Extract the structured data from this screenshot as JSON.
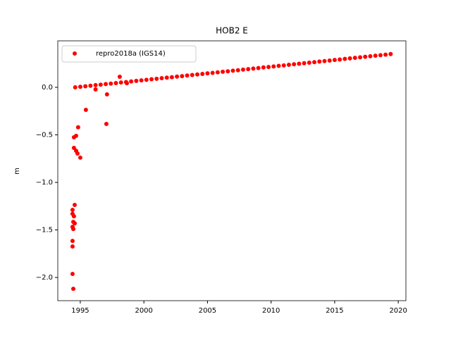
{
  "chart_data": {
    "type": "scatter",
    "title": "HOB2 E",
    "y_label": "m",
    "xlim": [
      1993.23,
      2020.6
    ],
    "ylim": [
      -2.244,
      0.489
    ],
    "xticks": [
      1995,
      2000,
      2005,
      2010,
      2015,
      2020
    ],
    "yticks": [
      {
        "value": 0,
        "label": "0.0"
      },
      {
        "value": -0.5,
        "label": "−0.5"
      },
      {
        "value": -1,
        "label": "−1.0"
      },
      {
        "value": -1.5,
        "label": "−1.5"
      },
      {
        "value": -2,
        "label": "−2.0"
      }
    ],
    "legend": "upper left",
    "series": [
      {
        "name": "repro2018a (IGS14)",
        "color": "#ff0000",
        "x": [
          1994.6,
          1995,
          1995.4,
          1995.8,
          1996.2,
          1996.6,
          1997,
          1997.4,
          1997.8,
          1998.2,
          1998.6,
          1999,
          1999.4,
          1999.8,
          2000.2,
          2000.6,
          2001,
          2001.4,
          2001.8,
          2002.2,
          2002.6,
          2003,
          2003.4,
          2003.8,
          2004.2,
          2004.6,
          2005,
          2005.4,
          2005.8,
          2006.2,
          2006.6,
          2007,
          2007.4,
          2007.8,
          2008.2,
          2008.6,
          2009,
          2009.4,
          2009.8,
          2010.2,
          2010.6,
          2011,
          2011.4,
          2011.8,
          2012.2,
          2012.6,
          2013,
          2013.4,
          2013.8,
          2014.2,
          2014.6,
          2015,
          2015.4,
          2015.8,
          2016.2,
          2016.6,
          2017,
          2017.4,
          2017.8,
          2018.2,
          2018.6,
          2019,
          2019.4,
          1995.44,
          1994.83,
          1994.5,
          1994.67,
          1994.5,
          1994.67,
          1994.78,
          1995.0,
          1994.56,
          1994.39,
          1994.39,
          1994.5,
          1994.45,
          1994.56,
          1994.39,
          1994.45,
          1994.39,
          1994.39,
          1994.39,
          1994.45,
          1997.1,
          1997.05,
          1996.2,
          1998.1,
          1998.66
        ],
        "values": [
          0.0,
          0.006,
          0.011,
          0.017,
          0.023,
          0.028,
          0.034,
          0.039,
          0.045,
          0.051,
          0.056,
          0.062,
          0.068,
          0.073,
          0.079,
          0.085,
          0.09,
          0.096,
          0.102,
          0.107,
          0.113,
          0.118,
          0.124,
          0.13,
          0.135,
          0.141,
          0.147,
          0.152,
          0.158,
          0.164,
          0.169,
          0.175,
          0.18,
          0.186,
          0.192,
          0.197,
          0.203,
          0.209,
          0.214,
          0.22,
          0.226,
          0.231,
          0.237,
          0.243,
          0.248,
          0.254,
          0.259,
          0.265,
          0.271,
          0.276,
          0.282,
          0.288,
          0.293,
          0.299,
          0.305,
          0.31,
          0.316,
          0.321,
          0.327,
          0.333,
          0.338,
          0.344,
          0.35,
          -0.237,
          -0.42,
          -0.526,
          -0.51,
          -0.637,
          -0.667,
          -0.696,
          -0.74,
          -1.237,
          -1.289,
          -1.33,
          -1.356,
          -1.415,
          -1.43,
          -1.467,
          -1.49,
          -1.615,
          -1.674,
          -1.963,
          -2.119,
          -0.074,
          -0.385,
          -0.022,
          0.111,
          0.044
        ]
      }
    ]
  }
}
